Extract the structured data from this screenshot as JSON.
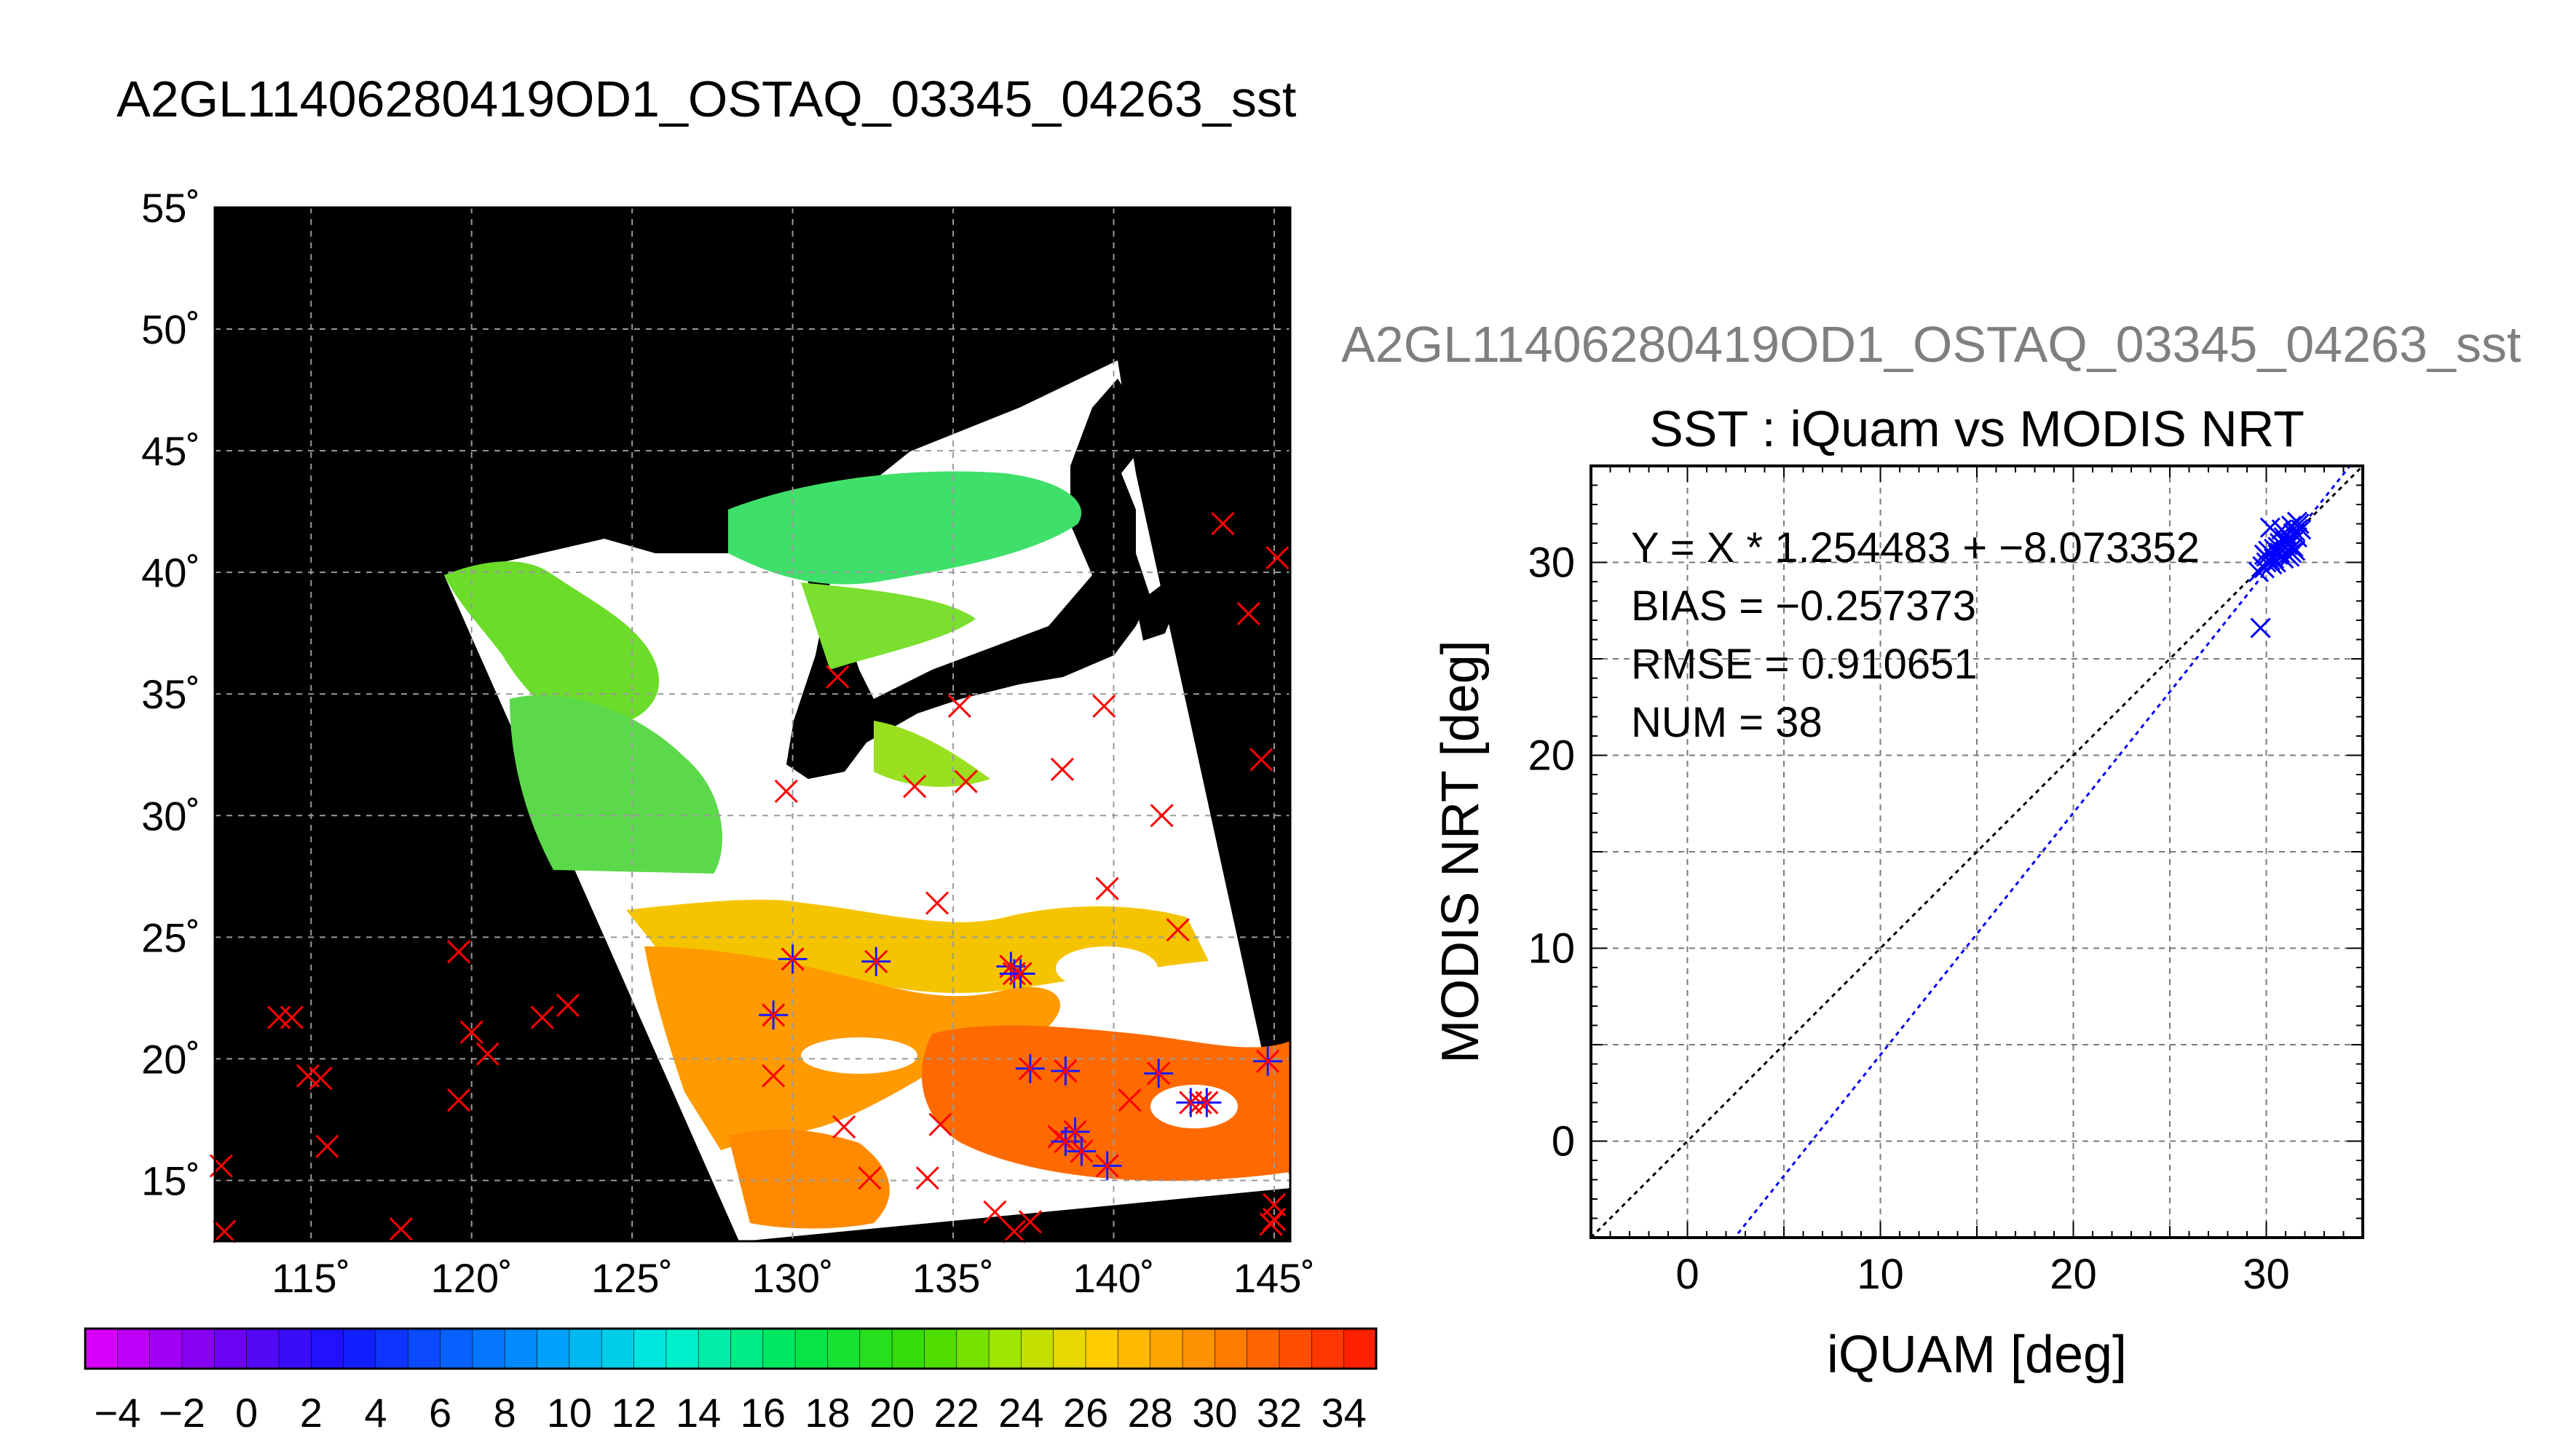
{
  "map": {
    "title": "A2GL11406280419OD1_OSTAQ_03345_04263_sst",
    "lon_ticks": [
      115,
      120,
      125,
      130,
      135,
      140,
      145
    ],
    "lon_tick_labels": [
      "115˚",
      "120˚",
      "125˚",
      "130˚",
      "135˚",
      "140˚",
      "145˚"
    ],
    "lat_ticks": [
      15,
      20,
      25,
      30,
      35,
      40,
      45,
      50,
      55
    ],
    "lat_tick_labels": [
      "15˚",
      "20˚",
      "25˚",
      "30˚",
      "35˚",
      "40˚",
      "45˚",
      "50˚",
      "55˚"
    ],
    "lon_range": [
      112,
      145.5
    ],
    "lat_range": [
      12.5,
      55
    ],
    "colors": {
      "background": "#000000",
      "cloud": "#ffffff",
      "grid": "#9a9a9a"
    },
    "red_markers": [
      [
        112.2,
        15.6
      ],
      [
        112.3,
        12.9
      ],
      [
        114,
        21.7
      ],
      [
        114.4,
        21.7
      ],
      [
        114.9,
        19.3
      ],
      [
        115.3,
        19.2
      ],
      [
        115.5,
        16.4
      ],
      [
        117.8,
        13
      ],
      [
        119.6,
        24.4
      ],
      [
        119.6,
        18.3
      ],
      [
        120,
        21.1
      ],
      [
        120.5,
        20.2
      ],
      [
        122.2,
        21.7
      ],
      [
        123,
        22.2
      ],
      [
        129.4,
        19.3
      ],
      [
        129.8,
        31
      ],
      [
        131.4,
        35.7
      ],
      [
        131.6,
        17.2
      ],
      [
        132.4,
        15.1
      ],
      [
        133.8,
        31.2
      ],
      [
        134.2,
        15.1
      ],
      [
        134.5,
        26.4
      ],
      [
        134.6,
        17.3
      ],
      [
        135.2,
        34.5
      ],
      [
        135.4,
        31.4
      ],
      [
        136.3,
        13.7
      ],
      [
        136.9,
        12.9
      ],
      [
        137.4,
        13.3
      ],
      [
        138.3,
        16.8
      ],
      [
        138.4,
        31.9
      ],
      [
        139.7,
        34.5
      ],
      [
        139.8,
        27
      ],
      [
        140.5,
        18.3
      ],
      [
        141.5,
        30
      ],
      [
        142,
        25.3
      ],
      [
        142.7,
        18.2
      ],
      [
        143.4,
        42
      ],
      [
        144.2,
        38.3
      ],
      [
        144.6,
        32.3
      ],
      [
        145.1,
        40.6
      ],
      [
        145,
        14
      ],
      [
        145,
        13.4
      ],
      [
        144.9,
        13.2
      ]
    ],
    "blue_markers": [
      [
        129.4,
        21.8
      ],
      [
        130,
        24.1
      ],
      [
        132.6,
        24
      ],
      [
        136.8,
        23.8
      ],
      [
        136.9,
        23.5
      ],
      [
        137.1,
        23.5
      ],
      [
        137.4,
        19.6
      ],
      [
        138.5,
        19.5
      ],
      [
        138.5,
        16.6
      ],
      [
        138.8,
        17
      ],
      [
        139,
        16.2
      ],
      [
        139.8,
        15.6
      ],
      [
        141.4,
        19.4
      ],
      [
        142.4,
        18.2
      ],
      [
        142.9,
        18.2
      ],
      [
        144.8,
        19.9
      ]
    ]
  },
  "colorbar": {
    "ticks": [
      -4,
      -2,
      0,
      2,
      4,
      6,
      8,
      10,
      12,
      14,
      16,
      18,
      20,
      22,
      24,
      26,
      28,
      30,
      32,
      34
    ],
    "tick_labels": [
      "−4",
      "−2",
      "0",
      "2",
      "4",
      "6",
      "8",
      "10",
      "12",
      "14",
      "16",
      "18",
      "20",
      "22",
      "24",
      "26",
      "28",
      "30",
      "32",
      "34"
    ],
    "range": [
      -5,
      35
    ]
  },
  "chart_data": {
    "type": "scatter",
    "header_title": "A2GL11406280419OD1_OSTAQ_03345_04263_sst",
    "title": "SST : iQuam vs MODIS NRT",
    "xlabel": "iQUAM [deg]",
    "ylabel": "MODIS NRT [deg]",
    "xlim": [
      -5,
      35
    ],
    "ylim": [
      -5,
      35
    ],
    "xticks": [
      0,
      10,
      20,
      30
    ],
    "yticks": [
      0,
      10,
      20,
      30
    ],
    "grid": true,
    "annotations": [
      "Y = X * 1.254483 + −8.073352",
      "BIAS = −0.257373",
      "RMSE = 0.910651",
      "NUM = 38"
    ],
    "fit": {
      "slope": 1.254483,
      "intercept": -8.073352,
      "color": "#0000ff"
    },
    "identity_line": {
      "color": "#000000"
    },
    "marker_color": "#0000ff",
    "points": [
      [
        29.6,
        29.5
      ],
      [
        29.8,
        29.8
      ],
      [
        30.0,
        30.3
      ],
      [
        30.2,
        30.1
      ],
      [
        30.4,
        30.7
      ],
      [
        30.6,
        30.4
      ],
      [
        30.8,
        30.9
      ],
      [
        31.0,
        30.5
      ],
      [
        31.2,
        31.2
      ],
      [
        31.4,
        30.8
      ],
      [
        31.5,
        31.6
      ],
      [
        31.3,
        31.9
      ],
      [
        31.1,
        31.4
      ],
      [
        30.9,
        30.2
      ],
      [
        30.7,
        31.0
      ],
      [
        30.5,
        30.0
      ],
      [
        30.3,
        29.9
      ],
      [
        30.1,
        30.6
      ],
      [
        29.9,
        29.7
      ],
      [
        31.6,
        31.3
      ],
      [
        31.7,
        32.0
      ],
      [
        31.2,
        30.3
      ],
      [
        30.8,
        31.7
      ],
      [
        30.2,
        31.8
      ],
      [
        29.7,
        26.6
      ],
      [
        31.4,
        31.5
      ],
      [
        31.0,
        31.1
      ],
      [
        30.6,
        30.8
      ],
      [
        31.5,
        30.6
      ],
      [
        30.0,
        30.0
      ],
      [
        31.3,
        30.5
      ],
      [
        31.8,
        31.7
      ],
      [
        30.9,
        31.3
      ],
      [
        30.4,
        30.2
      ],
      [
        31.1,
        30.9
      ],
      [
        31.6,
        32.1
      ],
      [
        30.7,
        30.5
      ],
      [
        29.9,
        30.4
      ]
    ]
  }
}
